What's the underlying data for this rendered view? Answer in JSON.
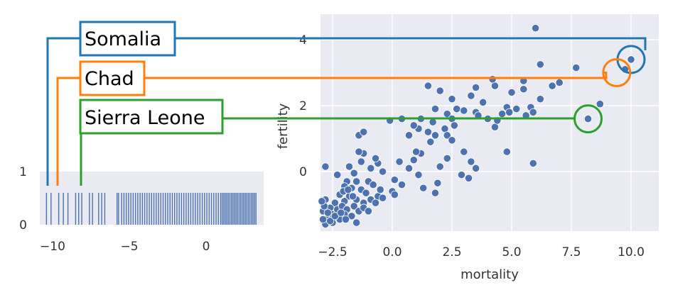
{
  "chart_data": [
    {
      "type": "scatter",
      "xlabel": "mortality",
      "ylabel": "fertility",
      "xlim": [
        -3.5,
        10.5
      ],
      "ylim": [
        -1.8,
        4.6
      ],
      "x_ticks": [
        "−2.5",
        "0.0",
        "2.5",
        "5.0",
        "7.5",
        "10.0"
      ],
      "y_ticks": [
        "0",
        "2",
        "4"
      ],
      "grid": true,
      "point_color": "#4c72b0",
      "points": [
        [
          6.0,
          4.35
        ],
        [
          10.0,
          3.4
        ],
        [
          9.75,
          3.1
        ],
        [
          6.2,
          3.25
        ],
        [
          7.7,
          3.15
        ],
        [
          8.2,
          1.6
        ],
        [
          8.7,
          2.05
        ],
        [
          5.9,
          0.25
        ],
        [
          4.8,
          0.6
        ],
        [
          6.7,
          2.6
        ],
        [
          7.0,
          2.7
        ],
        [
          6.2,
          2.2
        ],
        [
          5.5,
          2.75
        ],
        [
          5.5,
          2.5
        ],
        [
          5.0,
          2.4
        ],
        [
          4.8,
          1.95
        ],
        [
          5.2,
          1.9
        ],
        [
          5.8,
          1.95
        ],
        [
          5.9,
          1.8
        ],
        [
          5.6,
          1.7
        ],
        [
          4.9,
          1.8
        ],
        [
          4.3,
          2.6
        ],
        [
          4.2,
          2.8
        ],
        [
          3.5,
          2.55
        ],
        [
          3.8,
          2.1
        ],
        [
          3.3,
          2.3
        ],
        [
          3.5,
          1.8
        ],
        [
          3.6,
          1.7
        ],
        [
          3.0,
          1.85
        ],
        [
          4.0,
          1.6
        ],
        [
          4.3,
          1.35
        ],
        [
          4.6,
          1.75
        ],
        [
          4.4,
          1.55
        ],
        [
          2.5,
          2.2
        ],
        [
          2.7,
          1.9
        ],
        [
          1.8,
          1.9
        ],
        [
          2.3,
          1.75
        ],
        [
          1.5,
          2.6
        ],
        [
          2.0,
          2.45
        ],
        [
          2.5,
          1.6
        ],
        [
          2.6,
          1.4
        ],
        [
          1.7,
          1.5
        ],
        [
          2.2,
          1.3
        ],
        [
          2.3,
          1.1
        ],
        [
          2.5,
          0.95
        ],
        [
          1.2,
          1.6
        ],
        [
          1.1,
          1.3
        ],
        [
          0.9,
          1.4
        ],
        [
          0.7,
          1.1
        ],
        [
          0.4,
          1.6
        ],
        [
          -0.1,
          1.55
        ],
        [
          1.5,
          1.2
        ],
        [
          1.8,
          1.1
        ],
        [
          1.6,
          0.9
        ],
        [
          1.2,
          0.55
        ],
        [
          1.0,
          0.6
        ],
        [
          0.9,
          0.35
        ],
        [
          0.7,
          0.1
        ],
        [
          0.3,
          0.3
        ],
        [
          3.3,
          0.3
        ],
        [
          3.5,
          0.1
        ],
        [
          3.2,
          -0.2
        ],
        [
          2.9,
          -0.1
        ],
        [
          3.0,
          0.6
        ],
        [
          2.3,
          0.4
        ],
        [
          2.0,
          0.15
        ],
        [
          1.9,
          -0.35
        ],
        [
          1.8,
          -0.65
        ],
        [
          1.1,
          -0.1
        ],
        [
          1.3,
          -0.5
        ],
        [
          0.4,
          -0.4
        ],
        [
          0.1,
          -0.25
        ],
        [
          0.0,
          -0.6
        ],
        [
          0.1,
          -0.7
        ],
        [
          -0.4,
          0.0
        ],
        [
          -0.6,
          0.25
        ],
        [
          -0.7,
          0.4
        ],
        [
          -0.9,
          0.1
        ],
        [
          -1.0,
          -0.3
        ],
        [
          -1.2,
          0.55
        ],
        [
          -1.4,
          1.1
        ],
        [
          -1.2,
          1.2
        ],
        [
          -1.4,
          0.6
        ],
        [
          -1.3,
          0.3
        ],
        [
          -1.6,
          -0.05
        ],
        [
          -1.8,
          0.15
        ],
        [
          -1.9,
          -0.3
        ],
        [
          -2.3,
          -0.1
        ],
        [
          -2.8,
          0.15
        ],
        [
          -2.0,
          -0.45
        ],
        [
          -1.7,
          -0.5
        ],
        [
          -1.5,
          -0.3
        ],
        [
          -1.3,
          -0.55
        ],
        [
          -1.1,
          -0.65
        ],
        [
          -0.8,
          -0.4
        ],
        [
          -0.6,
          -0.75
        ],
        [
          -0.5,
          -0.55
        ],
        [
          -0.9,
          -0.85
        ],
        [
          -1.2,
          -0.95
        ],
        [
          -1.5,
          -0.85
        ],
        [
          -1.8,
          -0.75
        ],
        [
          -2.0,
          -0.9
        ],
        [
          -2.2,
          -0.7
        ],
        [
          -2.4,
          -0.95
        ],
        [
          -2.6,
          -1.1
        ],
        [
          -2.8,
          -0.85
        ],
        [
          -2.9,
          -1.2
        ],
        [
          -2.7,
          -1.4
        ],
        [
          -2.5,
          -1.3
        ],
        [
          -2.3,
          -1.15
        ],
        [
          -2.1,
          -1.05
        ],
        [
          -1.9,
          -1.15
        ],
        [
          -1.6,
          -1.05
        ],
        [
          -1.4,
          -1.2
        ],
        [
          -1.7,
          -1.35
        ],
        [
          -2.0,
          -1.3
        ],
        [
          -2.2,
          -1.45
        ],
        [
          -2.5,
          -1.55
        ],
        [
          -2.8,
          -1.6
        ],
        [
          -2.6,
          -1.5
        ],
        [
          -2.9,
          -1.45
        ],
        [
          -2.85,
          -1.05
        ],
        [
          -1.5,
          -1.55
        ],
        [
          -1.2,
          -1.1
        ],
        [
          -1.0,
          -1.2
        ],
        [
          -0.7,
          -0.95
        ],
        [
          -0.4,
          -0.8
        ],
        [
          -2.05,
          -0.6
        ],
        [
          -1.85,
          -0.55
        ],
        [
          -1.65,
          -0.75
        ],
        [
          -2.4,
          -1.35
        ],
        [
          -2.7,
          -1.25
        ],
        [
          -2.95,
          -0.9
        ],
        [
          -2.15,
          -1.25
        ],
        [
          -1.95,
          -1.45
        ]
      ],
      "highlights": [
        {
          "label": "Somalia",
          "x": 10.0,
          "y": 3.4,
          "color": "#1f77b4"
        },
        {
          "label": "Chad",
          "x": 9.4,
          "y": 3.0,
          "color": "#ff7f0e"
        },
        {
          "label": "Sierra Leone",
          "x": 8.2,
          "y": 1.6,
          "color": "#2ca02c"
        }
      ]
    },
    {
      "type": "rug",
      "x_ticks": [
        "−10",
        "−5",
        "0"
      ],
      "y_ticks": [
        "0",
        "1"
      ],
      "xlim": [
        -11.1,
        3.5
      ],
      "ylim": [
        0,
        1
      ],
      "values": [
        -10.4,
        -10.1,
        -9.6,
        -9.3,
        -9.0,
        -8.5,
        -8.3,
        -8.1,
        -7.6,
        -7.4,
        -7.0,
        -6.8,
        -6.6,
        -5.8,
        -5.7,
        -5.5,
        -5.35,
        -5.2,
        -5.05,
        -4.9,
        -4.75,
        -4.6,
        -4.45,
        -4.3,
        -4.15,
        -4.0,
        -3.85,
        -3.7,
        -3.55,
        -3.4,
        -3.25,
        -3.1,
        -2.95,
        -2.8,
        -2.65,
        -2.5,
        -2.35,
        -2.2,
        -2.05,
        -1.9,
        -1.75,
        -1.6,
        -1.45,
        -1.3,
        -1.15,
        -1.0,
        -0.85,
        -0.7,
        -0.55,
        -0.4,
        -0.25,
        -0.1,
        0.05,
        0.2,
        0.35,
        0.5,
        0.65,
        0.8,
        0.95,
        1.05,
        1.15,
        1.25,
        1.35,
        1.45,
        1.55,
        1.65,
        1.75,
        1.85,
        1.95,
        2.05,
        2.15,
        2.25,
        2.35,
        2.45,
        2.55,
        2.65,
        2.75,
        2.85,
        2.95,
        3.05,
        3.15,
        3.25
      ],
      "highlights": [
        {
          "label": "Somalia",
          "x": -10.6
        },
        {
          "label": "Chad",
          "x": -10.2
        },
        {
          "label": "Sierra Leone",
          "x": -8.5
        }
      ]
    }
  ]
}
